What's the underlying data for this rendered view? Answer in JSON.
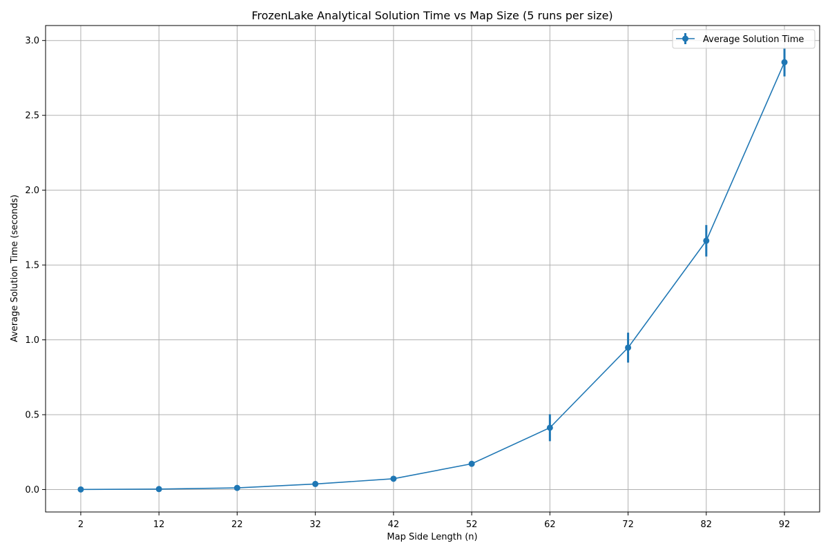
{
  "chart_data": {
    "type": "line",
    "title": "FrozenLake Analytical Solution Time vs Map Size (5 runs per size)",
    "xlabel": "Map Side Length (n)",
    "ylabel": "Average Solution Time (seconds)",
    "x": [
      2,
      12,
      22,
      32,
      42,
      52,
      62,
      72,
      82,
      92
    ],
    "x_tick_labels": [
      "2",
      "12",
      "22",
      "32",
      "42",
      "52",
      "62",
      "72",
      "82",
      "92"
    ],
    "y_tick_values": [
      0.0,
      0.5,
      1.0,
      1.5,
      2.0,
      2.5,
      3.0
    ],
    "y_tick_labels": [
      "0.0",
      "0.5",
      "1.0",
      "1.5",
      "2.0",
      "2.5",
      "3.0"
    ],
    "xlim": [
      -2.5,
      96.5
    ],
    "ylim": [
      -0.15,
      3.1
    ],
    "grid": true,
    "legend_position": "top-right",
    "series": [
      {
        "name": "Average Solution Time",
        "color": "#1f77b4",
        "marker": "circle",
        "values": [
          0.0005,
          0.003,
          0.011,
          0.037,
          0.072,
          0.172,
          0.413,
          0.948,
          1.662,
          2.855
        ],
        "errors": [
          0.0002,
          0.001,
          0.003,
          0.006,
          0.008,
          0.012,
          0.09,
          0.1,
          0.105,
          0.095
        ]
      }
    ]
  }
}
